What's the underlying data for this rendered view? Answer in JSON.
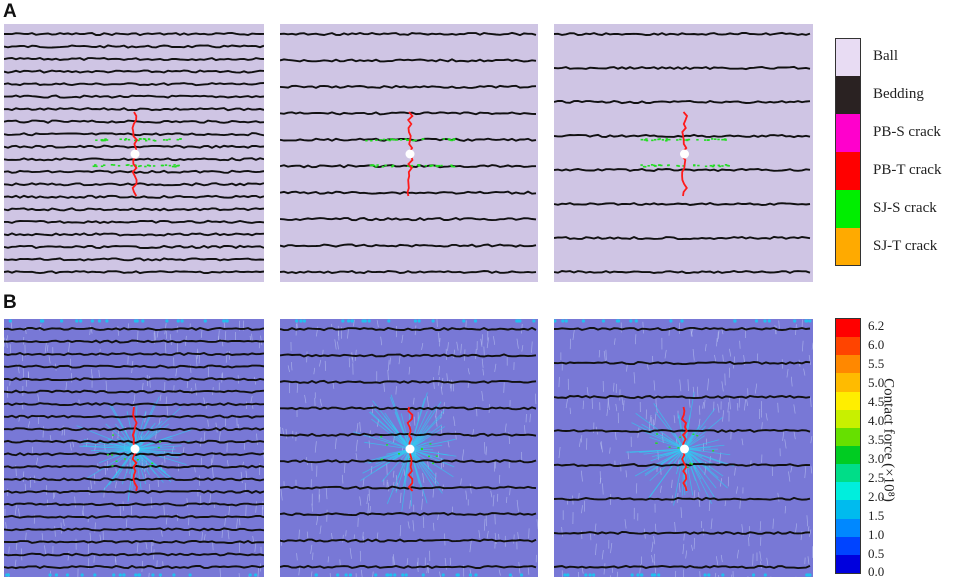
{
  "panel_a_label": "A",
  "panel_b_label": "B",
  "panel_a": {
    "legend": [
      {
        "label": "Ball",
        "color": "#e8dcf3"
      },
      {
        "label": "Bedding",
        "color": "#2a2222"
      },
      {
        "label": "PB-S crack",
        "color": "#ff00cc"
      },
      {
        "label": "PB-T crack",
        "color": "#ff0000"
      },
      {
        "label": "SJ-S crack",
        "color": "#00ee00"
      },
      {
        "label": "SJ-T crack",
        "color": "#ffaa00"
      }
    ]
  },
  "panel_b": {
    "colorbar": {
      "title": "Contact force (×10⁸)",
      "ticks": [
        "6.2",
        "6.0",
        "5.5",
        "5.0",
        "4.5",
        "4.0",
        "3.5",
        "3.0",
        "2.5",
        "2.0",
        "1.5",
        "1.0",
        "0.5",
        "0.0"
      ],
      "colors": [
        "#ff0000",
        "#ff4400",
        "#ff8800",
        "#ffbb00",
        "#ffee00",
        "#c8f000",
        "#66e000",
        "#00cc22",
        "#00dd88",
        "#00eedd",
        "#00bbee",
        "#0088ff",
        "#0044ff",
        "#0000dd"
      ]
    }
  },
  "models": [
    {
      "bedding_count": 20
    },
    {
      "bedding_count": 10
    },
    {
      "bedding_count": 8
    }
  ],
  "colors": {
    "ball_fill": "#cfc5e4",
    "contact_bg": "#7878d6",
    "bedding": "#111111",
    "crack_t": "#ff1a1a",
    "crack_s": "#22dd22",
    "hole": "#ffffff"
  }
}
